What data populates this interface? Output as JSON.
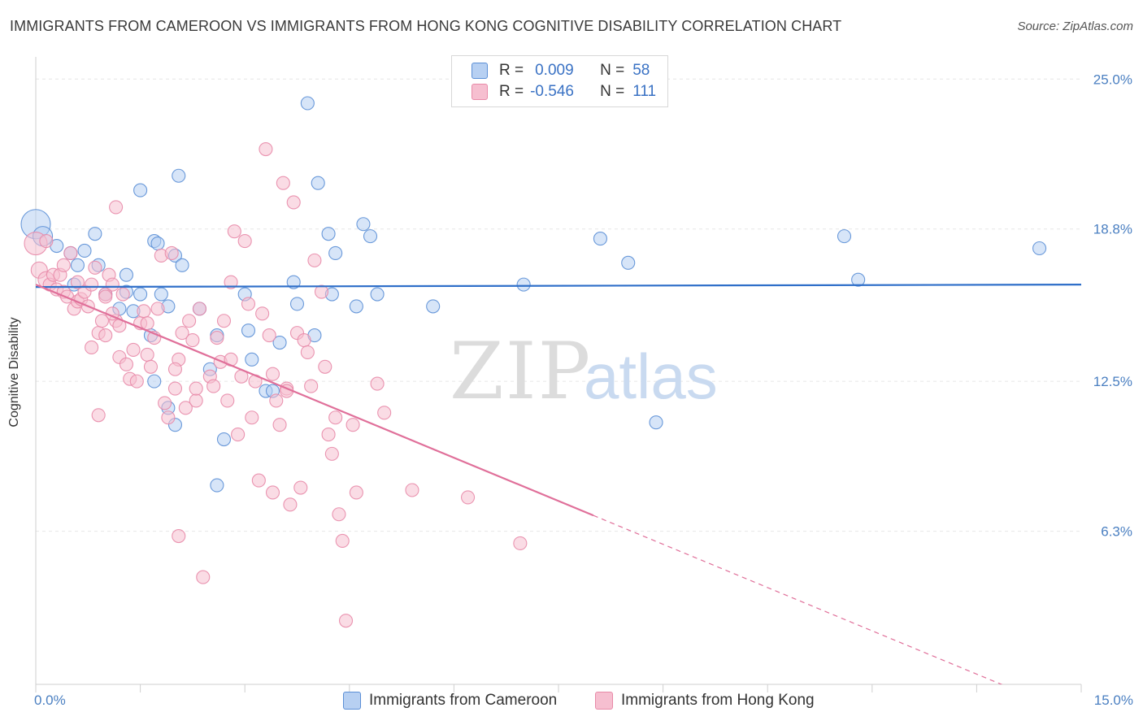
{
  "title": "IMMIGRANTS FROM CAMEROON VS IMMIGRANTS FROM HONG KONG COGNITIVE DISABILITY CORRELATION CHART",
  "source": "Source: ZipAtlas.com",
  "watermark": {
    "part1": "ZIP",
    "part2": "atlas"
  },
  "legend_top": {
    "rows": [
      {
        "r_label": "R =",
        "r_value": "0.009",
        "n_label": "N =",
        "n_value": "58"
      },
      {
        "r_label": "R =",
        "r_value": "-0.546",
        "n_label": "N =",
        "n_value": "111"
      }
    ]
  },
  "colors": {
    "blue_fill": "#b7d0f2",
    "blue_stroke": "#5b8fd6",
    "blue_line": "#2f6fc9",
    "pink_fill": "#f6bfd0",
    "pink_stroke": "#e88aa8",
    "pink_line": "#e0709a",
    "tick": "#4a7fc1"
  },
  "chart_data": {
    "type": "scatter",
    "title": "IMMIGRANTS FROM CAMEROON VS IMMIGRANTS FROM HONG KONG COGNITIVE DISABILITY CORRELATION CHART",
    "xlabel": "",
    "ylabel": "Cognitive Disability",
    "xlim": [
      0,
      15
    ],
    "ylim": [
      0,
      26
    ],
    "x_tick_labels": [
      "0.0%",
      "15.0%"
    ],
    "y_ticks": [
      6.3,
      12.5,
      18.8,
      25.0
    ],
    "y_tick_labels": [
      "6.3%",
      "12.5%",
      "18.8%",
      "25.0%"
    ],
    "grid": true,
    "legend_position": "bottom",
    "series": [
      {
        "name": "Immigrants from Cameroon",
        "trend": {
          "x": [
            0,
            15
          ],
          "y": [
            16.4,
            16.5
          ],
          "dashed_from_x": null
        },
        "points": [
          [
            0.0,
            19.0,
            18
          ],
          [
            0.1,
            18.5,
            12
          ],
          [
            0.3,
            18.1,
            8
          ],
          [
            0.5,
            17.8,
            8
          ],
          [
            0.7,
            17.9,
            8
          ],
          [
            0.85,
            18.6,
            8
          ],
          [
            0.6,
            17.3,
            8
          ],
          [
            0.9,
            17.3,
            8
          ],
          [
            1.3,
            16.9,
            8
          ],
          [
            1.5,
            20.4,
            8
          ],
          [
            1.7,
            18.3,
            8
          ],
          [
            1.75,
            18.2,
            8
          ],
          [
            1.8,
            16.1,
            8
          ],
          [
            2.0,
            17.7,
            8
          ],
          [
            2.05,
            21.0,
            8
          ],
          [
            2.1,
            17.3,
            8
          ],
          [
            1.3,
            16.2,
            8
          ],
          [
            1.5,
            16.1,
            8
          ],
          [
            0.55,
            16.5,
            8
          ],
          [
            1.0,
            16.1,
            8
          ],
          [
            1.2,
            15.5,
            8
          ],
          [
            1.4,
            15.4,
            8
          ],
          [
            1.9,
            15.6,
            8
          ],
          [
            2.35,
            15.5,
            8
          ],
          [
            1.65,
            14.4,
            8
          ],
          [
            2.6,
            14.4,
            8
          ],
          [
            1.7,
            12.5,
            8
          ],
          [
            1.9,
            11.4,
            8
          ],
          [
            2.0,
            10.7,
            8
          ],
          [
            2.5,
            13.0,
            8
          ],
          [
            2.7,
            10.1,
            8
          ],
          [
            2.6,
            8.2,
            8
          ],
          [
            3.0,
            16.1,
            8
          ],
          [
            3.05,
            14.6,
            8
          ],
          [
            3.1,
            13.4,
            8
          ],
          [
            3.3,
            12.1,
            8
          ],
          [
            3.4,
            12.1,
            8
          ],
          [
            3.5,
            14.1,
            8
          ],
          [
            3.7,
            16.6,
            8
          ],
          [
            3.75,
            15.7,
            8
          ],
          [
            3.9,
            24.0,
            8
          ],
          [
            4.05,
            20.7,
            8
          ],
          [
            4.0,
            14.4,
            8
          ],
          [
            4.2,
            18.6,
            8
          ],
          [
            4.25,
            16.1,
            8
          ],
          [
            4.3,
            17.8,
            8
          ],
          [
            4.6,
            15.6,
            8
          ],
          [
            4.7,
            19.0,
            8
          ],
          [
            4.8,
            18.5,
            8
          ],
          [
            4.9,
            16.1,
            8
          ],
          [
            5.7,
            15.6,
            8
          ],
          [
            7.0,
            16.5,
            8
          ],
          [
            8.1,
            18.4,
            8
          ],
          [
            8.5,
            17.4,
            8
          ],
          [
            8.9,
            10.8,
            8
          ],
          [
            11.6,
            18.5,
            8
          ],
          [
            11.8,
            16.7,
            8
          ],
          [
            14.4,
            18.0,
            8
          ]
        ]
      },
      {
        "name": "Immigrants from Hong Kong",
        "trend": {
          "x": [
            0,
            15
          ],
          "y": [
            16.5,
            -1.4
          ],
          "dashed_from_x": 8.0
        },
        "points": [
          [
            0.0,
            18.2,
            14
          ],
          [
            0.05,
            17.1,
            10
          ],
          [
            0.15,
            16.7,
            10
          ],
          [
            0.2,
            16.5,
            8
          ],
          [
            0.25,
            16.9,
            8
          ],
          [
            0.3,
            16.3,
            8
          ],
          [
            0.35,
            16.9,
            8
          ],
          [
            0.4,
            16.2,
            8
          ],
          [
            0.45,
            16.0,
            8
          ],
          [
            0.5,
            17.8,
            8
          ],
          [
            0.55,
            15.5,
            8
          ],
          [
            0.6,
            15.8,
            8
          ],
          [
            0.65,
            15.9,
            8
          ],
          [
            0.7,
            16.2,
            8
          ],
          [
            0.75,
            15.6,
            8
          ],
          [
            0.8,
            16.5,
            8
          ],
          [
            0.85,
            17.2,
            8
          ],
          [
            0.9,
            14.5,
            8
          ],
          [
            0.95,
            15.0,
            8
          ],
          [
            1.0,
            16.1,
            8
          ],
          [
            1.05,
            16.9,
            8
          ],
          [
            1.1,
            16.5,
            8
          ],
          [
            1.15,
            15.0,
            8
          ],
          [
            1.2,
            14.8,
            8
          ],
          [
            1.25,
            16.1,
            8
          ],
          [
            1.0,
            14.4,
            8
          ],
          [
            0.8,
            13.9,
            8
          ],
          [
            0.9,
            11.1,
            8
          ],
          [
            1.15,
            19.7,
            8
          ],
          [
            1.2,
            13.5,
            8
          ],
          [
            1.3,
            13.2,
            8
          ],
          [
            1.35,
            12.6,
            8
          ],
          [
            1.4,
            13.8,
            8
          ],
          [
            1.45,
            12.5,
            8
          ],
          [
            1.5,
            14.9,
            8
          ],
          [
            1.55,
            15.4,
            8
          ],
          [
            1.6,
            13.6,
            8
          ],
          [
            1.65,
            13.1,
            8
          ],
          [
            1.7,
            14.3,
            8
          ],
          [
            1.75,
            15.5,
            8
          ],
          [
            1.8,
            17.7,
            8
          ],
          [
            1.85,
            11.6,
            8
          ],
          [
            1.9,
            11.0,
            8
          ],
          [
            1.95,
            17.8,
            8
          ],
          [
            2.0,
            12.2,
            8
          ],
          [
            2.05,
            13.4,
            8
          ],
          [
            2.1,
            14.5,
            8
          ],
          [
            2.15,
            11.4,
            8
          ],
          [
            2.2,
            15.0,
            8
          ],
          [
            2.25,
            14.2,
            8
          ],
          [
            2.3,
            11.7,
            8
          ],
          [
            2.35,
            15.5,
            8
          ],
          [
            2.05,
            6.1,
            8
          ],
          [
            2.4,
            4.4,
            8
          ],
          [
            2.5,
            12.7,
            8
          ],
          [
            2.55,
            12.3,
            8
          ],
          [
            2.6,
            14.3,
            8
          ],
          [
            2.65,
            13.3,
            8
          ],
          [
            2.7,
            15.0,
            8
          ],
          [
            2.75,
            11.7,
            8
          ],
          [
            2.8,
            16.6,
            8
          ],
          [
            2.85,
            18.7,
            8
          ],
          [
            2.9,
            10.3,
            8
          ],
          [
            2.95,
            12.7,
            8
          ],
          [
            3.0,
            18.3,
            8
          ],
          [
            3.05,
            15.7,
            8
          ],
          [
            3.1,
            11.0,
            8
          ],
          [
            3.15,
            12.5,
            8
          ],
          [
            3.2,
            8.4,
            8
          ],
          [
            3.25,
            15.3,
            8
          ],
          [
            3.3,
            22.1,
            8
          ],
          [
            3.35,
            14.4,
            8
          ],
          [
            3.4,
            7.9,
            8
          ],
          [
            3.45,
            11.7,
            8
          ],
          [
            3.5,
            10.7,
            8
          ],
          [
            3.55,
            20.7,
            8
          ],
          [
            3.6,
            12.2,
            8
          ],
          [
            3.65,
            7.4,
            8
          ],
          [
            3.7,
            19.9,
            8
          ],
          [
            3.75,
            14.5,
            8
          ],
          [
            3.8,
            8.1,
            8
          ],
          [
            3.85,
            14.2,
            8
          ],
          [
            3.9,
            13.7,
            8
          ],
          [
            3.95,
            12.3,
            8
          ],
          [
            4.0,
            17.5,
            8
          ],
          [
            4.1,
            16.2,
            8
          ],
          [
            4.15,
            13.1,
            8
          ],
          [
            4.2,
            10.3,
            8
          ],
          [
            4.25,
            9.5,
            8
          ],
          [
            4.3,
            11.0,
            8
          ],
          [
            4.35,
            7.0,
            8
          ],
          [
            4.4,
            5.9,
            8
          ],
          [
            4.45,
            2.6,
            8
          ],
          [
            4.55,
            10.7,
            8
          ],
          [
            4.6,
            7.9,
            8
          ],
          [
            5.4,
            8.0,
            8
          ],
          [
            6.2,
            7.7,
            8
          ],
          [
            6.95,
            5.8,
            8
          ],
          [
            0.15,
            18.3,
            8
          ],
          [
            0.4,
            17.3,
            8
          ],
          [
            0.6,
            16.6,
            8
          ],
          [
            1.0,
            16.0,
            8
          ],
          [
            1.6,
            14.9,
            8
          ],
          [
            2.0,
            13.0,
            8
          ],
          [
            2.3,
            12.2,
            8
          ],
          [
            2.8,
            13.4,
            8
          ],
          [
            3.4,
            12.8,
            8
          ],
          [
            3.6,
            12.1,
            8
          ],
          [
            4.9,
            12.4,
            8
          ],
          [
            5.0,
            11.2,
            8
          ],
          [
            1.1,
            15.3,
            8
          ]
        ]
      }
    ]
  },
  "bottom_legend": [
    "Immigrants from Cameroon",
    "Immigrants from Hong Kong"
  ]
}
